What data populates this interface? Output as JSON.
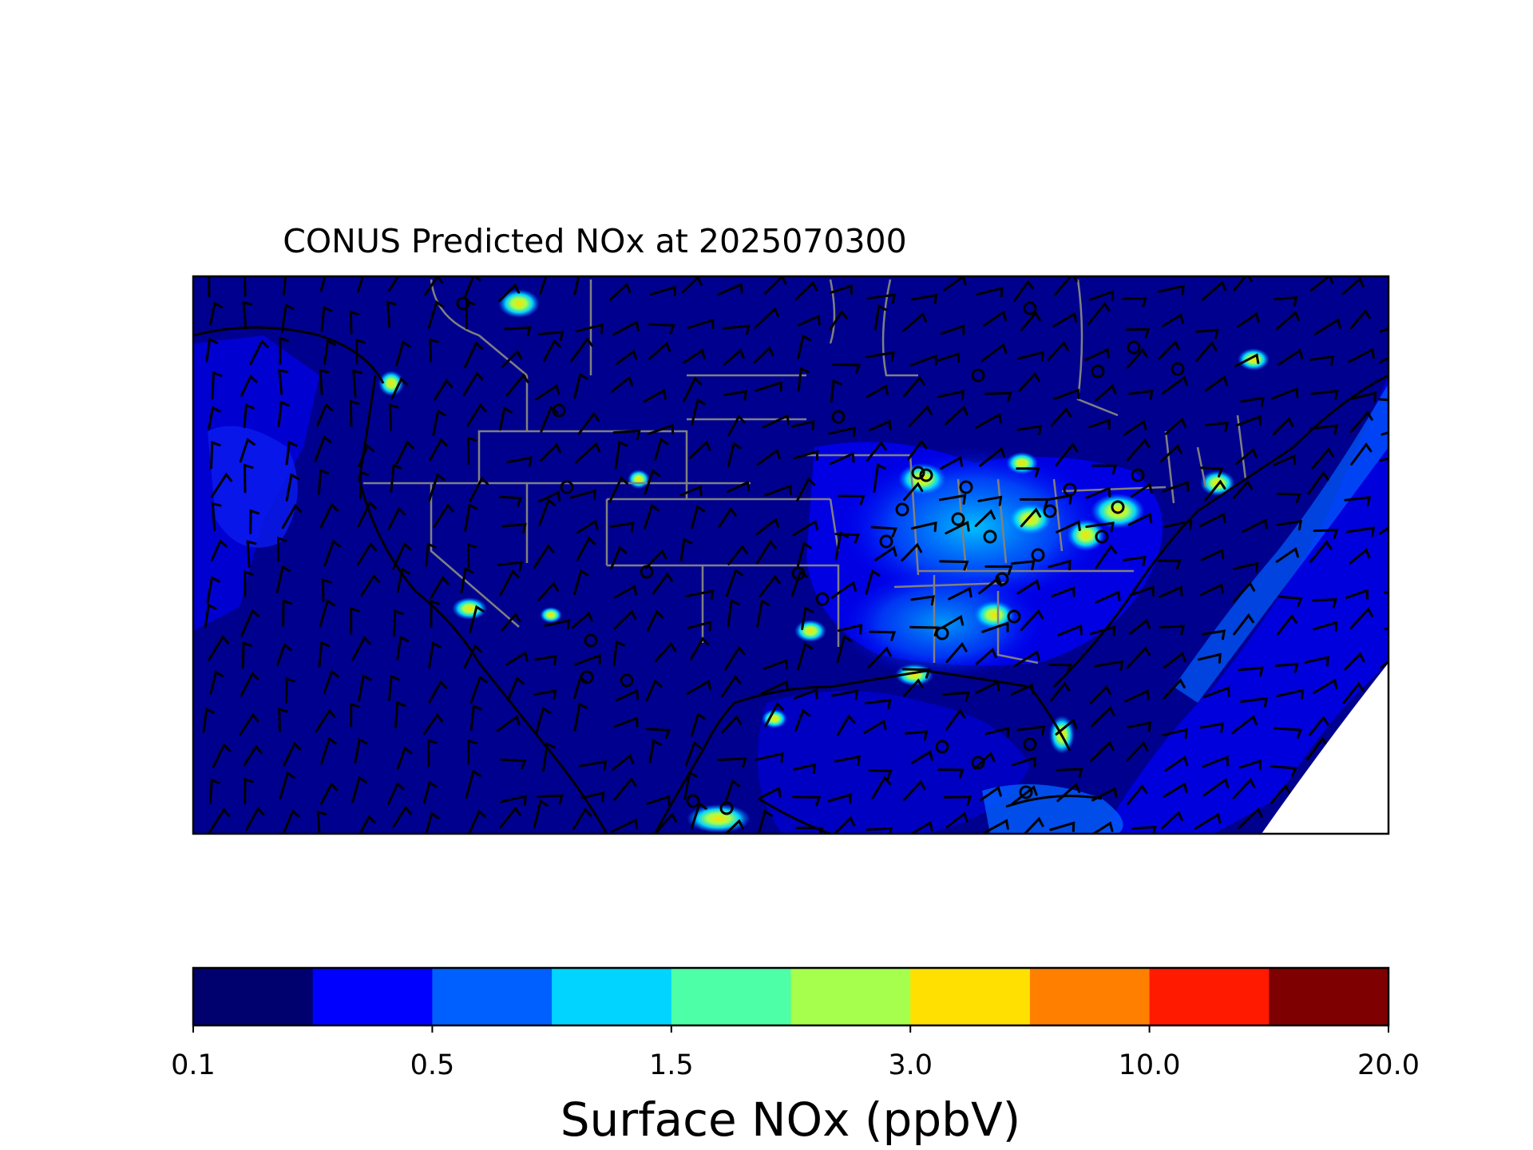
{
  "title": "CONUS Predicted NOx at 2025070300",
  "colorbar": {
    "label": "Surface NOx (ppbV)",
    "ticks": [
      "0.1",
      "0.5",
      "1.5",
      "3.0",
      "10.0",
      "20.0"
    ],
    "colors": [
      "#00006e",
      "#0000ff",
      "#0060ff",
      "#00d4ff",
      "#4dffa6",
      "#a6ff4d",
      "#ffe000",
      "#ff7f00",
      "#ff1a00",
      "#7f0000"
    ]
  },
  "map": {
    "region": "CONUS",
    "background_color": "#00008f",
    "ocean_color": "#0000d8",
    "state_border_color": "#808080",
    "coastline_color": "#000000",
    "wind_barb_color": "#000000"
  }
}
